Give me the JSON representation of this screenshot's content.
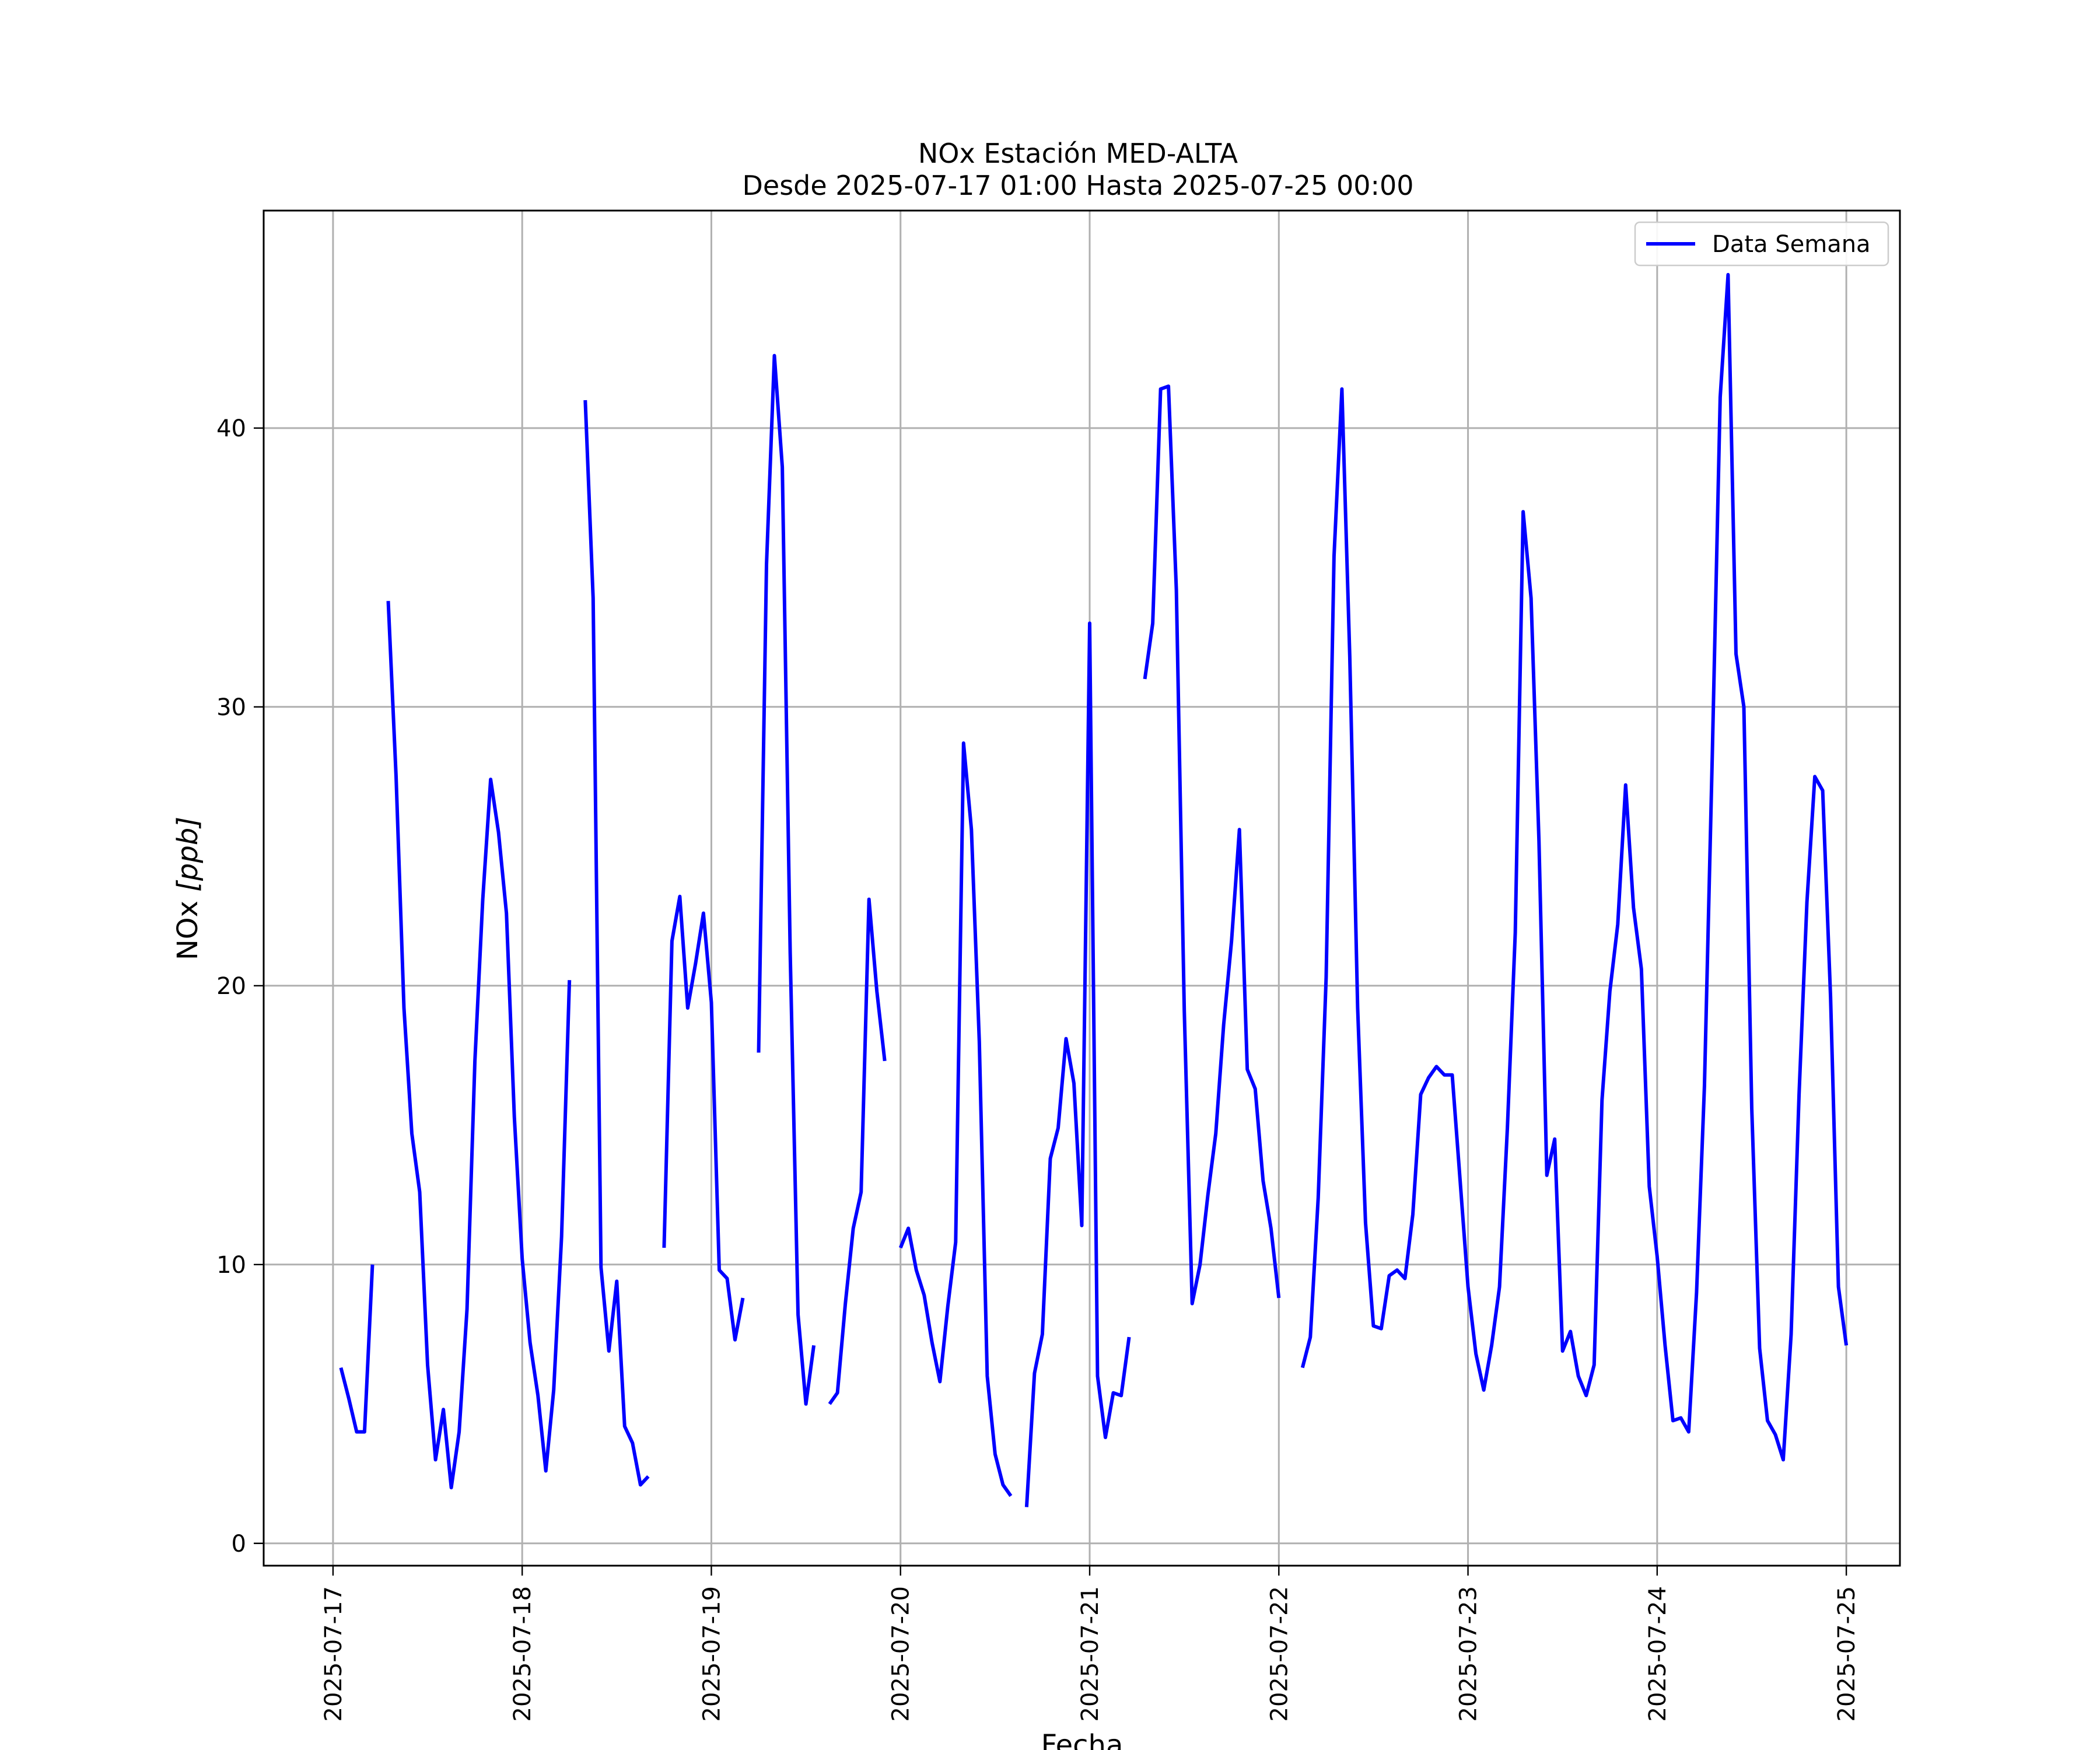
{
  "chart_data": {
    "type": "line",
    "title": "NOx Estación MED-ALTA",
    "subtitle": "Desde 2025-07-17 01:00 Hasta 2025-07-25 00:00",
    "xlabel": "Fecha",
    "ylabel_prefix": "NOx ",
    "ylabel_unit": "[ppb]",
    "ylim": [
      -0.8,
      47.8
    ],
    "xlim": [
      "2025-07-16 15:12",
      "2025-07-25 06:48"
    ],
    "x_ticks": [
      "2025-07-17",
      "2025-07-18",
      "2025-07-19",
      "2025-07-20",
      "2025-07-21",
      "2025-07-22",
      "2025-07-23",
      "2025-07-24",
      "2025-07-25"
    ],
    "y_ticks": [
      "0",
      "10",
      "20",
      "30",
      "40"
    ],
    "grid": true,
    "legend_position": "top-right",
    "series": [
      {
        "name": "Data Semana",
        "color": "#0000ff",
        "segments": [
          [
            [
              "2025-07-17 01:00",
              6.3
            ],
            [
              "2025-07-17 02:00",
              5.2
            ],
            [
              "2025-07-17 03:00",
              4.0
            ],
            [
              "2025-07-17 04:00",
              4.0
            ],
            [
              "2025-07-17 05:00",
              10.0
            ]
          ],
          [
            [
              "2025-07-17 07:00",
              33.8
            ],
            [
              "2025-07-17 08:00",
              27.5
            ],
            [
              "2025-07-17 09:00",
              19.2
            ],
            [
              "2025-07-17 10:00",
              14.7
            ],
            [
              "2025-07-17 11:00",
              12.6
            ],
            [
              "2025-07-17 12:00",
              6.4
            ],
            [
              "2025-07-17 13:00",
              3.0
            ],
            [
              "2025-07-17 14:00",
              4.8
            ],
            [
              "2025-07-17 15:00",
              2.0
            ],
            [
              "2025-07-17 16:00",
              4.0
            ],
            [
              "2025-07-17 17:00",
              8.4
            ],
            [
              "2025-07-17 18:00",
              17.3
            ],
            [
              "2025-07-17 19:00",
              23.1
            ],
            [
              "2025-07-17 20:00",
              27.4
            ],
            [
              "2025-07-17 21:00",
              25.5
            ],
            [
              "2025-07-17 22:00",
              22.6
            ],
            [
              "2025-07-17 23:00",
              15.3
            ],
            [
              "2025-07-18 00:00",
              10.2
            ],
            [
              "2025-07-18 01:00",
              7.2
            ],
            [
              "2025-07-18 02:00",
              5.3
            ],
            [
              "2025-07-18 03:00",
              2.6
            ],
            [
              "2025-07-18 04:00",
              5.5
            ],
            [
              "2025-07-18 05:00",
              11.0
            ],
            [
              "2025-07-18 06:00",
              20.2
            ]
          ],
          [
            [
              "2025-07-18 08:00",
              41.0
            ],
            [
              "2025-07-18 09:00",
              33.9
            ],
            [
              "2025-07-18 10:00",
              9.9
            ],
            [
              "2025-07-18 11:00",
              6.9
            ],
            [
              "2025-07-18 12:00",
              9.4
            ],
            [
              "2025-07-18 13:00",
              4.2
            ],
            [
              "2025-07-18 14:00",
              3.6
            ],
            [
              "2025-07-18 15:00",
              2.1
            ],
            [
              "2025-07-18 16:00",
              2.4
            ]
          ],
          [
            [
              "2025-07-18 18:00",
              10.6
            ],
            [
              "2025-07-18 19:00",
              21.6
            ],
            [
              "2025-07-18 20:00",
              23.2
            ],
            [
              "2025-07-18 21:00",
              19.2
            ],
            [
              "2025-07-18 22:00",
              20.8
            ],
            [
              "2025-07-18 23:00",
              22.6
            ],
            [
              "2025-07-19 00:00",
              19.4
            ],
            [
              "2025-07-19 01:00",
              9.8
            ],
            [
              "2025-07-19 02:00",
              9.5
            ],
            [
              "2025-07-19 03:00",
              7.3
            ],
            [
              "2025-07-19 04:00",
              8.8
            ]
          ],
          [
            [
              "2025-07-19 06:00",
              17.6
            ],
            [
              "2025-07-19 07:00",
              35.1
            ],
            [
              "2025-07-19 08:00",
              42.6
            ],
            [
              "2025-07-19 09:00",
              38.6
            ],
            [
              "2025-07-19 10:00",
              21.2
            ],
            [
              "2025-07-19 11:00",
              8.2
            ],
            [
              "2025-07-19 12:00",
              5.0
            ],
            [
              "2025-07-19 13:00",
              7.1
            ]
          ],
          [
            [
              "2025-07-19 15:00",
              5.0
            ],
            [
              "2025-07-19 16:00",
              5.4
            ],
            [
              "2025-07-19 17:00",
              8.6
            ],
            [
              "2025-07-19 18:00",
              11.3
            ],
            [
              "2025-07-19 19:00",
              12.6
            ],
            [
              "2025-07-19 20:00",
              23.1
            ],
            [
              "2025-07-19 21:00",
              19.8
            ],
            [
              "2025-07-19 22:00",
              17.3
            ]
          ],
          [
            [
              "2025-07-20 00:00",
              10.6
            ],
            [
              "2025-07-20 01:00",
              11.3
            ],
            [
              "2025-07-20 02:00",
              9.8
            ],
            [
              "2025-07-20 03:00",
              8.9
            ],
            [
              "2025-07-20 04:00",
              7.2
            ],
            [
              "2025-07-20 05:00",
              5.8
            ],
            [
              "2025-07-20 06:00",
              8.5
            ],
            [
              "2025-07-20 07:00",
              10.8
            ],
            [
              "2025-07-20 08:00",
              28.7
            ],
            [
              "2025-07-20 09:00",
              25.6
            ],
            [
              "2025-07-20 10:00",
              18.0
            ],
            [
              "2025-07-20 11:00",
              6.0
            ],
            [
              "2025-07-20 12:00",
              3.2
            ],
            [
              "2025-07-20 13:00",
              2.1
            ],
            [
              "2025-07-20 14:00",
              1.7
            ]
          ],
          [
            [
              "2025-07-20 16:00",
              1.3
            ],
            [
              "2025-07-20 17:00",
              6.1
            ],
            [
              "2025-07-20 18:00",
              7.5
            ],
            [
              "2025-07-20 19:00",
              13.8
            ],
            [
              "2025-07-20 20:00",
              14.9
            ],
            [
              "2025-07-20 21:00",
              18.1
            ],
            [
              "2025-07-20 22:00",
              16.5
            ],
            [
              "2025-07-20 23:00",
              11.4
            ],
            [
              "2025-07-21 00:00",
              33.0
            ],
            [
              "2025-07-21 01:00",
              6.0
            ],
            [
              "2025-07-21 02:00",
              3.8
            ],
            [
              "2025-07-21 03:00",
              5.4
            ],
            [
              "2025-07-21 04:00",
              5.3
            ],
            [
              "2025-07-21 05:00",
              7.4
            ]
          ],
          [
            [
              "2025-07-21 07:00",
              31.0
            ],
            [
              "2025-07-21 08:00",
              33.0
            ],
            [
              "2025-07-21 09:00",
              41.4
            ],
            [
              "2025-07-21 10:00",
              41.5
            ],
            [
              "2025-07-21 11:00",
              34.2
            ],
            [
              "2025-07-21 12:00",
              19.1
            ],
            [
              "2025-07-21 13:00",
              8.6
            ],
            [
              "2025-07-21 14:00",
              10.0
            ],
            [
              "2025-07-21 15:00",
              12.5
            ],
            [
              "2025-07-21 16:00",
              14.7
            ],
            [
              "2025-07-21 17:00",
              18.6
            ],
            [
              "2025-07-21 18:00",
              21.6
            ],
            [
              "2025-07-21 19:00",
              25.6
            ],
            [
              "2025-07-21 20:00",
              17.0
            ],
            [
              "2025-07-21 21:00",
              16.3
            ],
            [
              "2025-07-21 22:00",
              13.0
            ],
            [
              "2025-07-21 23:00",
              11.3
            ],
            [
              "2025-07-22 00:00",
              8.8
            ]
          ],
          [
            [
              "2025-07-22 03:00",
              6.3
            ],
            [
              "2025-07-22 04:00",
              7.4
            ],
            [
              "2025-07-22 05:00",
              12.4
            ],
            [
              "2025-07-22 06:00",
              20.3
            ],
            [
              "2025-07-22 07:00",
              35.4
            ],
            [
              "2025-07-22 08:00",
              41.4
            ],
            [
              "2025-07-22 09:00",
              31.8
            ],
            [
              "2025-07-22 10:00",
              19.2
            ],
            [
              "2025-07-22 11:00",
              11.5
            ],
            [
              "2025-07-22 12:00",
              7.8
            ],
            [
              "2025-07-22 13:00",
              7.7
            ],
            [
              "2025-07-22 14:00",
              9.6
            ],
            [
              "2025-07-22 15:00",
              9.8
            ],
            [
              "2025-07-22 16:00",
              9.5
            ],
            [
              "2025-07-22 17:00",
              11.8
            ],
            [
              "2025-07-22 18:00",
              16.1
            ],
            [
              "2025-07-22 19:00",
              16.7
            ],
            [
              "2025-07-22 20:00",
              17.1
            ],
            [
              "2025-07-22 21:00",
              16.8
            ],
            [
              "2025-07-22 22:00",
              16.8
            ],
            [
              "2025-07-22 23:00",
              13.0
            ],
            [
              "2025-07-23 00:00",
              9.2
            ],
            [
              "2025-07-23 01:00",
              6.8
            ],
            [
              "2025-07-23 02:00",
              5.5
            ],
            [
              "2025-07-23 03:00",
              7.1
            ],
            [
              "2025-07-23 04:00",
              9.2
            ],
            [
              "2025-07-23 05:00",
              14.9
            ],
            [
              "2025-07-23 06:00",
              21.9
            ],
            [
              "2025-07-23 07:00",
              37.0
            ],
            [
              "2025-07-23 08:00",
              33.9
            ],
            [
              "2025-07-23 09:00",
              25.2
            ],
            [
              "2025-07-23 10:00",
              13.2
            ],
            [
              "2025-07-23 11:00",
              14.5
            ],
            [
              "2025-07-23 12:00",
              6.9
            ],
            [
              "2025-07-23 13:00",
              7.6
            ],
            [
              "2025-07-23 14:00",
              6.0
            ],
            [
              "2025-07-23 15:00",
              5.3
            ],
            [
              "2025-07-23 16:00",
              6.4
            ],
            [
              "2025-07-23 17:00",
              15.9
            ],
            [
              "2025-07-23 18:00",
              19.8
            ],
            [
              "2025-07-23 19:00",
              22.2
            ],
            [
              "2025-07-23 20:00",
              27.2
            ],
            [
              "2025-07-23 21:00",
              22.8
            ],
            [
              "2025-07-23 22:00",
              20.6
            ],
            [
              "2025-07-23 23:00",
              12.8
            ],
            [
              "2025-07-24 00:00",
              10.3
            ],
            [
              "2025-07-24 01:00",
              7.1
            ],
            [
              "2025-07-24 02:00",
              4.4
            ],
            [
              "2025-07-24 03:00",
              4.5
            ],
            [
              "2025-07-24 04:00",
              4.0
            ],
            [
              "2025-07-24 05:00",
              9.0
            ],
            [
              "2025-07-24 06:00",
              16.4
            ],
            [
              "2025-07-24 07:00",
              28.3
            ],
            [
              "2025-07-24 08:00",
              41.1
            ],
            [
              "2025-07-24 09:00",
              45.5
            ],
            [
              "2025-07-24 10:00",
              31.9
            ],
            [
              "2025-07-24 11:00",
              30.0
            ],
            [
              "2025-07-24 12:00",
              15.6
            ],
            [
              "2025-07-24 13:00",
              7.0
            ],
            [
              "2025-07-24 14:00",
              4.4
            ],
            [
              "2025-07-24 15:00",
              3.9
            ],
            [
              "2025-07-24 16:00",
              3.0
            ],
            [
              "2025-07-24 17:00",
              7.5
            ],
            [
              "2025-07-24 18:00",
              16.1
            ],
            [
              "2025-07-24 19:00",
              23.0
            ],
            [
              "2025-07-24 20:00",
              27.5
            ],
            [
              "2025-07-24 21:00",
              27.0
            ],
            [
              "2025-07-24 22:00",
              19.6
            ],
            [
              "2025-07-24 23:00",
              9.2
            ],
            [
              "2025-07-25 00:00",
              7.1
            ]
          ]
        ]
      }
    ]
  }
}
